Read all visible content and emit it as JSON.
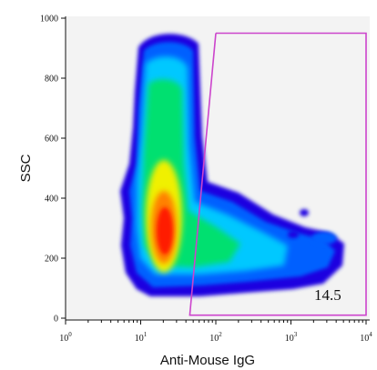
{
  "chart_data": {
    "type": "scatter",
    "subtype": "flow-cytometry-density",
    "xlabel": "Anti-Mouse IgG",
    "ylabel": "SSC",
    "x_scale": "log",
    "xlim": [
      1,
      10000
    ],
    "ylim": [
      0,
      1000
    ],
    "x_ticks": [
      {
        "value": 1,
        "base": "10",
        "exp": "0"
      },
      {
        "value": 10,
        "base": "10",
        "exp": "1"
      },
      {
        "value": 100,
        "base": "10",
        "exp": "2"
      },
      {
        "value": 1000,
        "base": "10",
        "exp": "3"
      },
      {
        "value": 10000,
        "base": "10",
        "exp": "4"
      }
    ],
    "y_ticks": [
      0,
      200,
      400,
      600,
      800,
      1000
    ],
    "y_tick_labels": [
      "0",
      "200",
      "400",
      "600",
      "800",
      "1000"
    ],
    "gate": {
      "label": "14.5",
      "color": "#cc44cc",
      "vertices": [
        [
          100,
          950
        ],
        [
          10000,
          950
        ],
        [
          10000,
          10
        ],
        [
          45,
          10
        ],
        [
          100,
          950
        ]
      ]
    },
    "density_population": {
      "colormap": [
        "#1a00e0",
        "#0060ff",
        "#00c8ff",
        "#00e070",
        "#f0f000",
        "#ff8000",
        "#ff1a00"
      ],
      "main_cluster_center": [
        20,
        300
      ],
      "tail_extent_x": [
        100,
        2500
      ],
      "tail_extent_y": [
        130,
        280
      ]
    },
    "grid": false,
    "background": "#f3f3f3"
  }
}
